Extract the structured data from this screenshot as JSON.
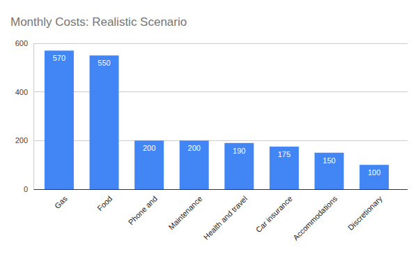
{
  "chart_data": {
    "type": "bar",
    "title": "Monthly Costs: Realistic Scenario",
    "categories": [
      "Gas",
      "Food",
      "Phone and",
      "Maintenance",
      "Health and travel",
      "Car insurance",
      "Accommodations",
      "Discretionary"
    ],
    "values": [
      570,
      550,
      200,
      200,
      190,
      175,
      150,
      100
    ],
    "color": "#4285f4",
    "ylim": [
      0,
      600
    ],
    "yticks": [
      0,
      200,
      400,
      600
    ],
    "grid": true,
    "data_labels": true
  }
}
